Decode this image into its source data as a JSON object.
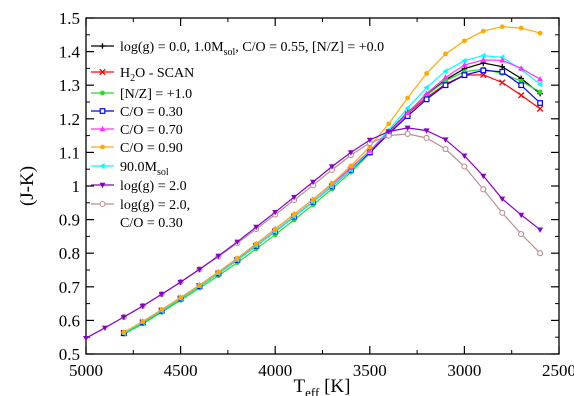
{
  "chart_data": {
    "type": "line",
    "xlabel": "T",
    "xlabel_sub": "eff",
    "xlabel_unit": " [K]",
    "ylabel": "(J-K)",
    "xlim": [
      5000,
      2500
    ],
    "ylim": [
      0.5,
      1.5
    ],
    "x_reversed": true,
    "grid": false,
    "legend_position": "top-left",
    "x_ticks": [
      5000,
      4500,
      4000,
      3500,
      3000,
      2500
    ],
    "x_tick_labels": [
      "5000",
      "4500",
      "4000",
      "3500",
      "3000",
      "2500"
    ],
    "y_ticks": [
      0.5,
      0.6,
      0.7,
      0.8,
      0.9,
      1.0,
      1.1,
      1.2,
      1.3,
      1.4,
      1.5
    ],
    "y_tick_labels": [
      "0.5",
      "0.6",
      "0.7",
      "0.8",
      "0.9",
      "1",
      "1.1",
      "1.2",
      "1.3",
      "1.4",
      "1.5"
    ],
    "series": [
      {
        "id": "base",
        "label_lines": [
          [
            {
              "t": "log(g) = 0.0, 1.0M"
            },
            {
              "t": "sol",
              "sub": true
            },
            {
              "t": ", C/O = 0.55, [N/Z] = +0.0"
            }
          ]
        ],
        "color": "#000000",
        "marker": "plus",
        "x": [
          4800,
          4700,
          4600,
          4500,
          4400,
          4300,
          4200,
          4100,
          4000,
          3900,
          3800,
          3700,
          3600,
          3500,
          3400,
          3300,
          3200,
          3100,
          3000,
          2900,
          2800,
          2700,
          2600
        ],
        "y": [
          0.562,
          0.594,
          0.629,
          0.665,
          0.702,
          0.74,
          0.78,
          0.822,
          0.865,
          0.909,
          0.953,
          0.999,
          1.048,
          1.103,
          1.162,
          1.219,
          1.271,
          1.316,
          1.349,
          1.366,
          1.355,
          1.32,
          1.275
        ]
      },
      {
        "id": "h2o",
        "label_lines": [
          [
            {
              "t": "H"
            },
            {
              "t": "2",
              "sub": true
            },
            {
              "t": "O - SCAN"
            }
          ]
        ],
        "color": "#ff0000",
        "marker": "cross",
        "x": [
          4800,
          4700,
          4600,
          4500,
          4400,
          4300,
          4200,
          4100,
          4000,
          3900,
          3800,
          3700,
          3600,
          3500,
          3400,
          3300,
          3200,
          3100,
          3000,
          2900,
          2800,
          2700,
          2600
        ],
        "y": [
          0.562,
          0.594,
          0.629,
          0.665,
          0.702,
          0.74,
          0.78,
          0.822,
          0.865,
          0.909,
          0.953,
          0.999,
          1.048,
          1.103,
          1.16,
          1.215,
          1.263,
          1.303,
          1.33,
          1.331,
          1.308,
          1.27,
          1.23
        ]
      },
      {
        "id": "nz",
        "label_lines": [
          [
            {
              "t": "[N/Z] = +1.0"
            }
          ]
        ],
        "color": "#22dd22",
        "marker": "circle-filled",
        "x": [
          4800,
          4700,
          4600,
          4500,
          4400,
          4300,
          4200,
          4100,
          4000,
          3900,
          3800,
          3700,
          3600,
          3500,
          3400,
          3300,
          3200,
          3100,
          3000,
          2900,
          2800,
          2700,
          2600
        ],
        "y": [
          0.559,
          0.59,
          0.624,
          0.66,
          0.696,
          0.733,
          0.772,
          0.813,
          0.855,
          0.899,
          0.944,
          0.991,
          1.041,
          1.097,
          1.158,
          1.217,
          1.27,
          1.313,
          1.34,
          1.348,
          1.335,
          1.312,
          1.28
        ]
      },
      {
        "id": "co030",
        "label_lines": [
          [
            {
              "t": "C/O = 0.30"
            }
          ]
        ],
        "color": "#0000ff",
        "marker": "square",
        "x": [
          4800,
          4700,
          4600,
          4500,
          4400,
          4300,
          4200,
          4100,
          4000,
          3900,
          3800,
          3700,
          3600,
          3500,
          3400,
          3300,
          3200,
          3100,
          3000,
          2900,
          2800,
          2700,
          2600
        ],
        "y": [
          0.562,
          0.594,
          0.629,
          0.665,
          0.702,
          0.74,
          0.78,
          0.822,
          0.865,
          0.909,
          0.953,
          0.999,
          1.048,
          1.1,
          1.155,
          1.208,
          1.258,
          1.3,
          1.33,
          1.344,
          1.34,
          1.3,
          1.247
        ]
      },
      {
        "id": "co070",
        "label_lines": [
          [
            {
              "t": "C/O = 0.70"
            }
          ]
        ],
        "color": "#ff33ff",
        "marker": "triangle-up",
        "x": [
          4700,
          4600,
          4500,
          4400,
          4300,
          4200,
          4100,
          4000,
          3900,
          3800,
          3700,
          3600,
          3500,
          3400,
          3300,
          3200,
          3100,
          3000,
          2900,
          2800,
          2700,
          2600
        ],
        "y": [
          0.596,
          0.632,
          0.668,
          0.705,
          0.744,
          0.785,
          0.828,
          0.872,
          0.916,
          0.96,
          1.006,
          1.054,
          1.105,
          1.16,
          1.217,
          1.275,
          1.323,
          1.36,
          1.375,
          1.374,
          1.35,
          1.318
        ]
      },
      {
        "id": "co090",
        "label_lines": [
          [
            {
              "t": "C/O = 0.90"
            }
          ]
        ],
        "color": "#ffaa00",
        "marker": "circle-filled",
        "x": [
          4800,
          4700,
          4600,
          4500,
          4400,
          4300,
          4200,
          4100,
          4000,
          3900,
          3800,
          3700,
          3600,
          3500,
          3400,
          3300,
          3200,
          3100,
          3000,
          2900,
          2800,
          2700,
          2600
        ],
        "y": [
          0.565,
          0.597,
          0.632,
          0.668,
          0.705,
          0.744,
          0.785,
          0.828,
          0.872,
          0.916,
          0.96,
          1.008,
          1.06,
          1.117,
          1.185,
          1.262,
          1.335,
          1.393,
          1.432,
          1.461,
          1.474,
          1.47,
          1.455
        ]
      },
      {
        "id": "mass90",
        "label_lines": [
          [
            {
              "t": "90.0M"
            },
            {
              "t": "sol",
              "sub": true
            }
          ]
        ],
        "color": "#00ffff",
        "marker": "triangle-left",
        "x": [
          4800,
          4700,
          4600,
          4500,
          4400,
          4300,
          4200,
          4100,
          4000,
          3900,
          3800,
          3700,
          3600,
          3500,
          3400,
          3300,
          3200,
          3100,
          3000,
          2900,
          2800,
          2700,
          2600
        ],
        "y": [
          0.562,
          0.594,
          0.629,
          0.665,
          0.702,
          0.74,
          0.78,
          0.822,
          0.865,
          0.909,
          0.953,
          0.999,
          1.048,
          1.104,
          1.167,
          1.232,
          1.293,
          1.342,
          1.373,
          1.388,
          1.383,
          1.347,
          1.303
        ]
      },
      {
        "id": "logg2",
        "label_lines": [
          [
            {
              "t": "log(g) = 2.0"
            }
          ]
        ],
        "color": "#8800cc",
        "marker": "triangle-down",
        "x": [
          5000,
          4900,
          4800,
          4700,
          4600,
          4500,
          4400,
          4300,
          4200,
          4100,
          4000,
          3900,
          3800,
          3700,
          3600,
          3500,
          3400,
          3300,
          3200,
          3100,
          3000,
          2900,
          2800,
          2700,
          2600
        ],
        "y": [
          0.547,
          0.578,
          0.61,
          0.643,
          0.678,
          0.714,
          0.752,
          0.792,
          0.834,
          0.878,
          0.922,
          0.967,
          1.012,
          1.058,
          1.1,
          1.137,
          1.162,
          1.173,
          1.165,
          1.138,
          1.09,
          1.03,
          0.962,
          0.914,
          0.87
        ]
      },
      {
        "id": "logg2co030",
        "label_lines": [
          [
            {
              "t": "log(g) = 2.0,"
            }
          ],
          [
            {
              "t": "C/O = 0.30"
            }
          ]
        ],
        "color": "#bc8f8f",
        "marker": "circle-open",
        "x": [
          4800,
          4700,
          4600,
          4500,
          4400,
          4300,
          4200,
          4100,
          4000,
          3900,
          3800,
          3700,
          3600,
          3500,
          3400,
          3300,
          3200,
          3100,
          3000,
          2900,
          2800,
          2700,
          2600
        ],
        "y": [
          0.61,
          0.643,
          0.678,
          0.714,
          0.752,
          0.79,
          0.83,
          0.872,
          0.915,
          0.958,
          1.002,
          1.048,
          1.092,
          1.128,
          1.15,
          1.155,
          1.143,
          1.11,
          1.058,
          0.99,
          0.92,
          0.857,
          0.8
        ]
      }
    ]
  }
}
